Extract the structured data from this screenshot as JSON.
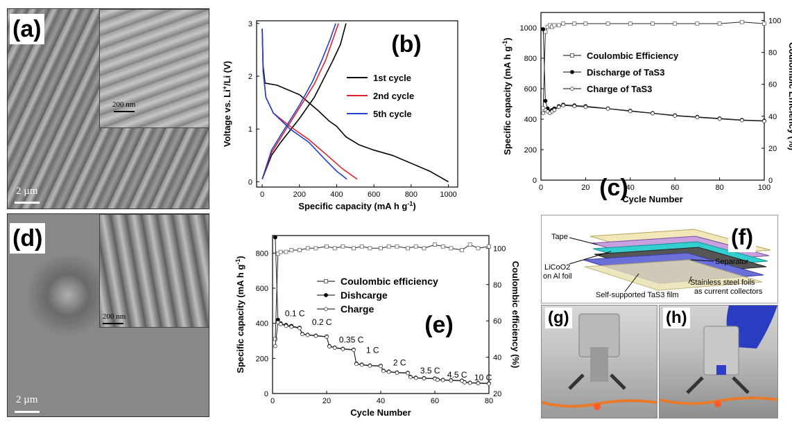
{
  "figure": {
    "panels": {
      "a": {
        "label": "(a)",
        "scale": "2 µm",
        "inset_scale": "200 nm"
      },
      "b": {
        "label": "(b)"
      },
      "c": {
        "label": "(c)"
      },
      "d": {
        "label": "(d)",
        "scale": "2 µm",
        "inset_scale": "200 nm"
      },
      "e": {
        "label": "(e)"
      },
      "f": {
        "label": "(f)",
        "tape": "Tape",
        "separator": "Separator",
        "cathode_l1": "LiCoO2",
        "cathode_l2": "on Al foil",
        "steel_l1": "Stainless steel foils",
        "steel_l2": "as current collectors",
        "film": "Self-supported TaS3 film"
      },
      "g": {
        "label": "(g)"
      },
      "h": {
        "label": "(h)"
      }
    }
  },
  "chart_data": [
    {
      "id": "b",
      "type": "line",
      "xlabel": "Specific capacity (mA h g-1)",
      "ylabel": "Voltage vs. Li+/Li (V)",
      "xlim": [
        -30,
        1050
      ],
      "ylim": [
        -0.1,
        3.05
      ],
      "xticks": [
        0,
        200,
        400,
        600,
        800,
        1000
      ],
      "yticks": [
        0,
        1,
        2,
        3
      ],
      "legend_position": "center-right",
      "series": [
        {
          "name": "1st cycle",
          "color": "#000000",
          "discharge": [
            [
              0,
              2.9
            ],
            [
              5,
              2.2
            ],
            [
              15,
              1.87
            ],
            [
              80,
              1.83
            ],
            [
              200,
              1.65
            ],
            [
              300,
              1.35
            ],
            [
              360,
              1.15
            ],
            [
              400,
              1.05
            ],
            [
              450,
              0.85
            ],
            [
              520,
              0.7
            ],
            [
              600,
              0.6
            ],
            [
              700,
              0.5
            ],
            [
              800,
              0.35
            ],
            [
              900,
              0.2
            ],
            [
              1000,
              0.0
            ]
          ],
          "charge": [
            [
              0,
              0.05
            ],
            [
              50,
              0.5
            ],
            [
              100,
              0.75
            ],
            [
              200,
              1.2
            ],
            [
              280,
              1.6
            ],
            [
              330,
              1.95
            ],
            [
              380,
              2.3
            ],
            [
              420,
              2.6
            ],
            [
              450,
              3.0
            ]
          ]
        },
        {
          "name": "2nd cycle",
          "color": "#e0202a",
          "discharge": [
            [
              0,
              2.9
            ],
            [
              5,
              2.1
            ],
            [
              20,
              1.6
            ],
            [
              60,
              1.3
            ],
            [
              150,
              1.05
            ],
            [
              250,
              0.8
            ],
            [
              350,
              0.5
            ],
            [
              430,
              0.25
            ],
            [
              510,
              0.05
            ]
          ],
          "charge": [
            [
              0,
              0.05
            ],
            [
              50,
              0.55
            ],
            [
              120,
              0.95
            ],
            [
              200,
              1.4
            ],
            [
              280,
              1.85
            ],
            [
              340,
              2.3
            ],
            [
              380,
              2.7
            ],
            [
              410,
              3.0
            ]
          ]
        },
        {
          "name": "5th cycle",
          "color": "#2040d0",
          "discharge": [
            [
              0,
              2.9
            ],
            [
              5,
              2.1
            ],
            [
              20,
              1.6
            ],
            [
              60,
              1.3
            ],
            [
              150,
              1.0
            ],
            [
              250,
              0.75
            ],
            [
              330,
              0.45
            ],
            [
              400,
              0.2
            ],
            [
              455,
              0.05
            ]
          ],
          "charge": [
            [
              0,
              0.05
            ],
            [
              50,
              0.6
            ],
            [
              120,
              1.0
            ],
            [
              200,
              1.45
            ],
            [
              270,
              1.9
            ],
            [
              320,
              2.3
            ],
            [
              365,
              2.7
            ],
            [
              395,
              3.0
            ]
          ]
        }
      ]
    },
    {
      "id": "c",
      "type": "line",
      "xlabel": "Cycle Number",
      "ylabel": "Specific capacity (mA h g-1)",
      "y2label": "Coulombic Efficiency (%)",
      "xlim": [
        0,
        100
      ],
      "ylim": [
        0,
        1100
      ],
      "y2lim": [
        0,
        105
      ],
      "xticks": [
        0,
        20,
        40,
        60,
        80,
        100
      ],
      "yticks": [
        0,
        200,
        400,
        600,
        800,
        1000
      ],
      "y2ticks": [
        0,
        20,
        40,
        60,
        80,
        100
      ],
      "legend_position": "top-center",
      "series": [
        {
          "name": "Coulombic Efficiency",
          "axis": "right",
          "marker": "square-open",
          "x": [
            1,
            2,
            3,
            4,
            5,
            6,
            8,
            10,
            15,
            20,
            30,
            40,
            50,
            60,
            70,
            80,
            90,
            100
          ],
          "y": [
            45,
            93,
            96,
            97,
            96,
            97,
            97,
            98,
            98,
            98,
            98,
            98,
            98,
            98,
            98,
            98,
            99,
            98
          ]
        },
        {
          "name": "Discharge of TaS3",
          "axis": "left",
          "marker": "circle-filled",
          "x": [
            1,
            2,
            3,
            4,
            5,
            6,
            8,
            10,
            15,
            20,
            30,
            40,
            50,
            60,
            70,
            80,
            90,
            100
          ],
          "y": [
            990,
            520,
            470,
            450,
            460,
            470,
            485,
            495,
            490,
            485,
            470,
            455,
            440,
            425,
            415,
            405,
            395,
            390
          ]
        },
        {
          "name": "Charge of TaS3",
          "axis": "left",
          "marker": "circle-open",
          "x": [
            1,
            2,
            3,
            4,
            5,
            6,
            8,
            10,
            15,
            20,
            30,
            40,
            50,
            60,
            70,
            80,
            90,
            100
          ],
          "y": [
            440,
            460,
            450,
            440,
            450,
            460,
            480,
            490,
            485,
            480,
            468,
            452,
            438,
            422,
            412,
            402,
            392,
            387
          ]
        }
      ]
    },
    {
      "id": "e",
      "type": "line",
      "xlabel": "Cycle Number",
      "ylabel": "Specific capacity (mA h g-1)",
      "y2label": "Coulombic efficiency (%)",
      "xlim": [
        0,
        80
      ],
      "ylim": [
        0,
        900
      ],
      "y2lim": [
        20,
        107
      ],
      "xticks": [
        0,
        20,
        40,
        60,
        80
      ],
      "yticks": [
        0,
        200,
        400,
        600,
        800
      ],
      "y2ticks": [
        20,
        40,
        60,
        80,
        100
      ],
      "legend_position": "top-center",
      "rate_labels": [
        {
          "text": "0.1 C",
          "x": 1,
          "y": 440
        },
        {
          "text": "0.2 C",
          "x": 11,
          "y": 390
        },
        {
          "text": "0.35 C",
          "x": 21,
          "y": 290
        },
        {
          "text": "1 C",
          "x": 31,
          "y": 230
        },
        {
          "text": "2 C",
          "x": 41,
          "y": 160
        },
        {
          "text": "3.5 C",
          "x": 51,
          "y": 115
        },
        {
          "text": "4.5 C",
          "x": 61,
          "y": 90
        },
        {
          "text": "10 C",
          "x": 71,
          "y": 75
        }
      ],
      "series": [
        {
          "name": "Coulombic efficiency",
          "axis": "right",
          "marker": "square-open",
          "x": [
            1,
            2,
            3,
            5,
            7,
            10,
            13,
            16,
            20,
            23,
            26,
            30,
            33,
            36,
            40,
            43,
            46,
            50,
            53,
            56,
            60,
            63,
            66,
            70,
            73,
            76,
            80
          ],
          "y": [
            50,
            97,
            98,
            98,
            99,
            99,
            100,
            100,
            101,
            100,
            101,
            100,
            101,
            100,
            100,
            101,
            101,
            100,
            101,
            100,
            102,
            101,
            100,
            99,
            102,
            100,
            101
          ]
        },
        {
          "name": "Dishcarge",
          "axis": "left",
          "marker": "circle-filled",
          "x": [
            1,
            2,
            3,
            5,
            7,
            10,
            11,
            13,
            16,
            20,
            21,
            23,
            26,
            30,
            31,
            33,
            36,
            40,
            41,
            43,
            46,
            50,
            51,
            53,
            56,
            60,
            61,
            63,
            66,
            70,
            71,
            73,
            76,
            80
          ],
          "y": [
            890,
            420,
            400,
            390,
            385,
            375,
            340,
            335,
            330,
            325,
            270,
            262,
            255,
            250,
            170,
            165,
            160,
            158,
            130,
            125,
            120,
            118,
            95,
            90,
            88,
            86,
            80,
            78,
            76,
            74,
            65,
            62,
            60,
            58
          ]
        },
        {
          "name": "Charge",
          "axis": "left",
          "marker": "circle-open",
          "x": [
            1,
            2,
            3,
            5,
            7,
            10,
            11,
            13,
            16,
            20,
            21,
            23,
            26,
            30,
            31,
            33,
            36,
            40,
            41,
            43,
            46,
            50,
            51,
            53,
            56,
            60,
            61,
            63,
            66,
            70,
            71,
            73,
            76,
            80
          ],
          "y": [
            270,
            405,
            395,
            385,
            380,
            372,
            338,
            333,
            328,
            323,
            268,
            260,
            253,
            248,
            168,
            163,
            158,
            156,
            128,
            123,
            118,
            116,
            93,
            88,
            86,
            84,
            78,
            76,
            74,
            72,
            63,
            60,
            58,
            56
          ]
        }
      ]
    }
  ]
}
